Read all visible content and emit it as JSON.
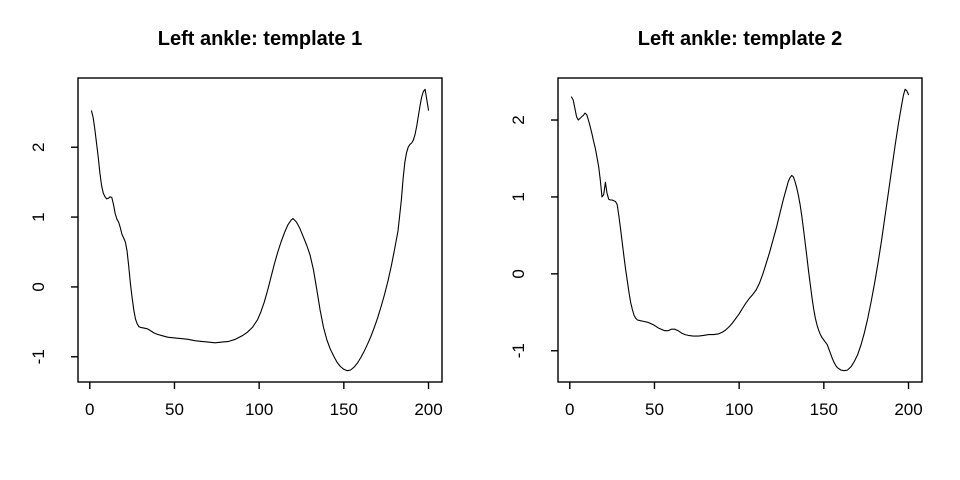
{
  "figure": {
    "background": "#ffffff",
    "foreground": "#000000"
  },
  "chart_data": [
    {
      "type": "line",
      "title": "Left ankle: template 1",
      "xlabel": "",
      "ylabel": "",
      "x_ticks": [
        0,
        50,
        100,
        150,
        200
      ],
      "y_ticks": [
        -1,
        0,
        1,
        2
      ],
      "xlim": [
        1,
        200
      ],
      "ylim": [
        -1.2,
        2.83
      ],
      "line_color": "#000000",
      "grid": false,
      "x": [
        1,
        2,
        3,
        4,
        5,
        6,
        7,
        8,
        9,
        10,
        11,
        12,
        13,
        14,
        15,
        16,
        17,
        18,
        19,
        20,
        21,
        22,
        23,
        24,
        25,
        26,
        27,
        28,
        29,
        30,
        32,
        34,
        36,
        38,
        40,
        43,
        46,
        50,
        54,
        58,
        62,
        66,
        70,
        74,
        78,
        82,
        86,
        90,
        93,
        96,
        99,
        101,
        103,
        105,
        107,
        109,
        111,
        113,
        115,
        117,
        119,
        120,
        122,
        124,
        126,
        128,
        130,
        132,
        134,
        136,
        138,
        140,
        142,
        144,
        146,
        148,
        150,
        152,
        154,
        156,
        158,
        160,
        162,
        164,
        166,
        168,
        170,
        172,
        174,
        176,
        178,
        180,
        182,
        184,
        185,
        186,
        187,
        188,
        189,
        190,
        191,
        192,
        193,
        194,
        195,
        196,
        197,
        198,
        199,
        200
      ],
      "y": [
        2.52,
        2.42,
        2.25,
        2.05,
        1.85,
        1.63,
        1.45,
        1.34,
        1.29,
        1.26,
        1.27,
        1.29,
        1.28,
        1.18,
        1.05,
        0.97,
        0.93,
        0.85,
        0.75,
        0.7,
        0.64,
        0.52,
        0.3,
        0.05,
        -0.15,
        -0.33,
        -0.46,
        -0.53,
        -0.57,
        -0.58,
        -0.59,
        -0.6,
        -0.63,
        -0.66,
        -0.68,
        -0.7,
        -0.72,
        -0.73,
        -0.74,
        -0.75,
        -0.77,
        -0.78,
        -0.79,
        -0.8,
        -0.79,
        -0.78,
        -0.75,
        -0.7,
        -0.65,
        -0.58,
        -0.47,
        -0.36,
        -0.22,
        -0.05,
        0.14,
        0.33,
        0.5,
        0.65,
        0.78,
        0.89,
        0.96,
        0.98,
        0.93,
        0.84,
        0.72,
        0.6,
        0.46,
        0.25,
        -0.03,
        -0.33,
        -0.58,
        -0.76,
        -0.89,
        -0.99,
        -1.08,
        -1.14,
        -1.18,
        -1.2,
        -1.19,
        -1.15,
        -1.09,
        -1.01,
        -0.92,
        -0.82,
        -0.71,
        -0.58,
        -0.44,
        -0.28,
        -0.11,
        0.08,
        0.3,
        0.54,
        0.8,
        1.25,
        1.55,
        1.78,
        1.92,
        2.0,
        2.04,
        2.06,
        2.1,
        2.18,
        2.3,
        2.45,
        2.6,
        2.72,
        2.8,
        2.83,
        2.68,
        2.53
      ]
    },
    {
      "type": "line",
      "title": "Left ankle: template 2",
      "xlabel": "",
      "ylabel": "",
      "x_ticks": [
        0,
        50,
        100,
        150,
        200
      ],
      "y_ticks": [
        -1,
        0,
        1,
        2
      ],
      "xlim": [
        1,
        200
      ],
      "ylim": [
        -1.26,
        2.4
      ],
      "line_color": "#000000",
      "grid": false,
      "x": [
        1,
        2,
        3,
        4,
        5,
        6,
        7,
        8,
        9,
        10,
        11,
        12,
        13,
        14,
        15,
        16,
        17,
        18,
        19,
        20,
        21,
        22,
        23,
        24,
        25,
        26,
        27,
        28,
        29,
        30,
        31,
        32,
        33,
        34,
        35,
        36,
        37,
        38,
        39,
        40,
        42,
        44,
        46,
        48,
        50,
        52,
        54,
        56,
        58,
        60,
        62,
        64,
        66,
        68,
        70,
        73,
        76,
        79,
        82,
        85,
        88,
        90,
        92,
        94,
        96,
        98,
        100,
        102,
        104,
        106,
        108,
        110,
        112,
        114,
        116,
        118,
        120,
        122,
        124,
        126,
        128,
        129,
        130,
        131,
        132,
        133,
        134,
        135,
        136,
        137,
        138,
        139,
        140,
        141,
        142,
        143,
        144,
        145,
        146,
        147,
        148,
        149,
        150,
        151,
        152,
        153,
        154,
        155,
        156,
        157,
        158,
        160,
        162,
        164,
        166,
        168,
        170,
        172,
        174,
        176,
        178,
        180,
        182,
        184,
        186,
        188,
        190,
        192,
        194,
        195,
        196,
        197,
        198,
        199,
        200
      ],
      "y": [
        2.3,
        2.26,
        2.15,
        2.04,
        2.0,
        2.02,
        2.04,
        2.06,
        2.09,
        2.07,
        2.0,
        1.92,
        1.83,
        1.73,
        1.64,
        1.52,
        1.4,
        1.22,
        1.0,
        1.03,
        1.19,
        1.05,
        0.97,
        0.96,
        0.96,
        0.95,
        0.94,
        0.9,
        0.75,
        0.58,
        0.4,
        0.22,
        0.05,
        -0.1,
        -0.25,
        -0.38,
        -0.47,
        -0.54,
        -0.58,
        -0.6,
        -0.61,
        -0.62,
        -0.63,
        -0.65,
        -0.67,
        -0.7,
        -0.72,
        -0.74,
        -0.74,
        -0.72,
        -0.72,
        -0.74,
        -0.77,
        -0.79,
        -0.8,
        -0.81,
        -0.81,
        -0.8,
        -0.79,
        -0.79,
        -0.78,
        -0.76,
        -0.73,
        -0.69,
        -0.64,
        -0.58,
        -0.52,
        -0.45,
        -0.38,
        -0.32,
        -0.27,
        -0.21,
        -0.12,
        0.0,
        0.14,
        0.28,
        0.44,
        0.6,
        0.78,
        0.96,
        1.12,
        1.2,
        1.25,
        1.28,
        1.26,
        1.2,
        1.12,
        1.02,
        0.9,
        0.75,
        0.58,
        0.4,
        0.22,
        0.03,
        -0.14,
        -0.31,
        -0.46,
        -0.58,
        -0.67,
        -0.74,
        -0.79,
        -0.83,
        -0.86,
        -0.89,
        -0.92,
        -0.98,
        -1.04,
        -1.1,
        -1.15,
        -1.19,
        -1.22,
        -1.25,
        -1.26,
        -1.25,
        -1.21,
        -1.14,
        -1.05,
        -0.92,
        -0.76,
        -0.57,
        -0.35,
        -0.12,
        0.14,
        0.42,
        0.73,
        1.04,
        1.35,
        1.66,
        1.95,
        2.08,
        2.2,
        2.32,
        2.4,
        2.38,
        2.33
      ]
    }
  ]
}
